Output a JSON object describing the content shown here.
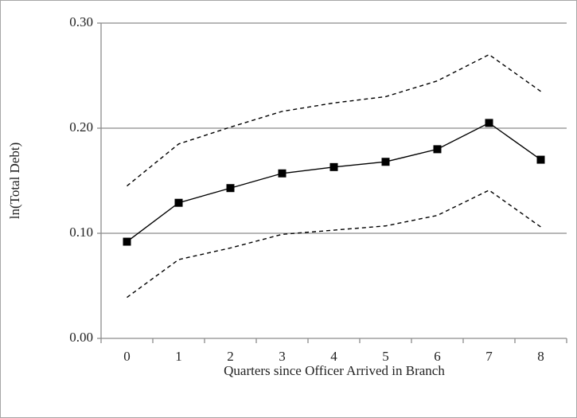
{
  "chart_data": {
    "type": "line",
    "x_label": "Quarters since Officer Arrived in Branch",
    "y_label": "ln(Total Debt)",
    "categories": [
      "0",
      "1",
      "2",
      "3",
      "4",
      "5",
      "6",
      "7",
      "8"
    ],
    "series": [
      {
        "color": "#000000",
        "style": "solid",
        "marker": "square",
        "values": [
          0.092,
          0.129,
          0.143,
          0.157,
          0.163,
          0.168,
          0.18,
          0.205,
          0.17
        ]
      },
      {
        "color": "#000000",
        "style": "dashed",
        "values": [
          0.145,
          0.185,
          0.201,
          0.216,
          0.224,
          0.23,
          0.245,
          0.27,
          0.235
        ]
      },
      {
        "color": "#000000",
        "style": "dashed",
        "values": [
          0.039,
          0.075,
          0.086,
          0.099,
          0.103,
          0.107,
          0.117,
          0.141,
          0.106
        ]
      }
    ],
    "ylim": [
      0,
      0.3
    ],
    "yticks": [
      {
        "value": 0,
        "label": "0.00"
      },
      {
        "value": 0.1,
        "label": "0.10"
      },
      {
        "value": 0.2,
        "label": "0.20"
      },
      {
        "value": 0.3,
        "label": "0.30"
      }
    ],
    "grid": true
  }
}
